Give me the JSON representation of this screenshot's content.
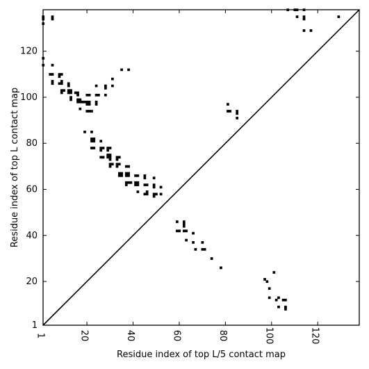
{
  "chart_data": {
    "type": "scatter",
    "title": "",
    "xlabel": "Residue index of top L/5 contact map",
    "ylabel": "Residue index of top L contact map",
    "xlim": [
      1,
      138
    ],
    "ylim": [
      1,
      138
    ],
    "grid": false,
    "diagonal": true,
    "xticks": [
      1,
      20,
      40,
      60,
      80,
      100,
      120
    ],
    "yticks": [
      1,
      20,
      40,
      60,
      80,
      100,
      120
    ],
    "marker_color": "#000000",
    "series": [
      {
        "points": [
          [
            1,
            135
          ],
          [
            1,
            134
          ],
          [
            1,
            132
          ],
          [
            5,
            134
          ],
          [
            5,
            135
          ],
          [
            1,
            117
          ],
          [
            1,
            114
          ],
          [
            5,
            114
          ],
          [
            4,
            110
          ],
          [
            5,
            110
          ],
          [
            5,
            107
          ],
          [
            5,
            106
          ],
          [
            8,
            110
          ],
          [
            9,
            110
          ],
          [
            8,
            109
          ],
          [
            9,
            107
          ],
          [
            8,
            106
          ],
          [
            9,
            106
          ],
          [
            9,
            103
          ],
          [
            10,
            103
          ],
          [
            9,
            102
          ],
          [
            12,
            106
          ],
          [
            12,
            105
          ],
          [
            12,
            103
          ],
          [
            13,
            103
          ],
          [
            12,
            102
          ],
          [
            13,
            102
          ],
          [
            13,
            100
          ],
          [
            13,
            99
          ],
          [
            15,
            102
          ],
          [
            16,
            102
          ],
          [
            16,
            101
          ],
          [
            16,
            99
          ],
          [
            17,
            99
          ],
          [
            16,
            98
          ],
          [
            17,
            98
          ],
          [
            18,
            98
          ],
          [
            19,
            98
          ],
          [
            20,
            98
          ],
          [
            21,
            98
          ],
          [
            20,
            97
          ],
          [
            21,
            97
          ],
          [
            20,
            101
          ],
          [
            21,
            101
          ],
          [
            17,
            95
          ],
          [
            20,
            94
          ],
          [
            21,
            94
          ],
          [
            22,
            94
          ],
          [
            24,
            105
          ],
          [
            24,
            101
          ],
          [
            25,
            101
          ],
          [
            24,
            98
          ],
          [
            24,
            97
          ],
          [
            28,
            105
          ],
          [
            28,
            104
          ],
          [
            28,
            101
          ],
          [
            31,
            108
          ],
          [
            31,
            105
          ],
          [
            35,
            112
          ],
          [
            38,
            112
          ],
          [
            19,
            85
          ],
          [
            22,
            85
          ],
          [
            22,
            82
          ],
          [
            23,
            82
          ],
          [
            22,
            81
          ],
          [
            23,
            81
          ],
          [
            22,
            78
          ],
          [
            23,
            78
          ],
          [
            26,
            81
          ],
          [
            26,
            78
          ],
          [
            27,
            78
          ],
          [
            26,
            77
          ],
          [
            26,
            74
          ],
          [
            27,
            74
          ],
          [
            29,
            78
          ],
          [
            30,
            78
          ],
          [
            29,
            77
          ],
          [
            29,
            75
          ],
          [
            30,
            75
          ],
          [
            29,
            74
          ],
          [
            30,
            74
          ],
          [
            30,
            73
          ],
          [
            30,
            71
          ],
          [
            31,
            71
          ],
          [
            30,
            70
          ],
          [
            33,
            74
          ],
          [
            34,
            74
          ],
          [
            33,
            73
          ],
          [
            33,
            71
          ],
          [
            34,
            71
          ],
          [
            33,
            70
          ],
          [
            34,
            67
          ],
          [
            35,
            67
          ],
          [
            34,
            66
          ],
          [
            35,
            66
          ],
          [
            37,
            67
          ],
          [
            38,
            67
          ],
          [
            37,
            66
          ],
          [
            38,
            66
          ],
          [
            37,
            70
          ],
          [
            38,
            70
          ],
          [
            37,
            63
          ],
          [
            38,
            63
          ],
          [
            37,
            62
          ],
          [
            39,
            63
          ],
          [
            41,
            66
          ],
          [
            42,
            66
          ],
          [
            41,
            63
          ],
          [
            42,
            63
          ],
          [
            41,
            62
          ],
          [
            42,
            62
          ],
          [
            42,
            59
          ],
          [
            45,
            66
          ],
          [
            45,
            65
          ],
          [
            45,
            62
          ],
          [
            46,
            62
          ],
          [
            45,
            58
          ],
          [
            46,
            58
          ],
          [
            46,
            59
          ],
          [
            49,
            65
          ],
          [
            49,
            62
          ],
          [
            49,
            61
          ],
          [
            49,
            58
          ],
          [
            50,
            58
          ],
          [
            49,
            57
          ],
          [
            52,
            61
          ],
          [
            52,
            58
          ],
          [
            59,
            46
          ],
          [
            59,
            42
          ],
          [
            60,
            42
          ],
          [
            62,
            46
          ],
          [
            62,
            45
          ],
          [
            62,
            44
          ],
          [
            62,
            42
          ],
          [
            63,
            42
          ],
          [
            63,
            38
          ],
          [
            66,
            41
          ],
          [
            66,
            37
          ],
          [
            67,
            34
          ],
          [
            70,
            37
          ],
          [
            70,
            34
          ],
          [
            71,
            34
          ],
          [
            74,
            30
          ],
          [
            78,
            26
          ],
          [
            81,
            97
          ],
          [
            81,
            94
          ],
          [
            82,
            94
          ],
          [
            85,
            94
          ],
          [
            85,
            93
          ],
          [
            85,
            91
          ],
          [
            97,
            21
          ],
          [
            98,
            20
          ],
          [
            99,
            17
          ],
          [
            99,
            13
          ],
          [
            101,
            24
          ],
          [
            102,
            12
          ],
          [
            103,
            13
          ],
          [
            103,
            9
          ],
          [
            105,
            12
          ],
          [
            106,
            12
          ],
          [
            106,
            9
          ],
          [
            106,
            8
          ],
          [
            107,
            138
          ],
          [
            110,
            138
          ],
          [
            111,
            138
          ],
          [
            114,
            138
          ],
          [
            111,
            135
          ],
          [
            114,
            135
          ],
          [
            114,
            134
          ],
          [
            114,
            129
          ],
          [
            117,
            129
          ],
          [
            129,
            135
          ]
        ]
      }
    ]
  }
}
